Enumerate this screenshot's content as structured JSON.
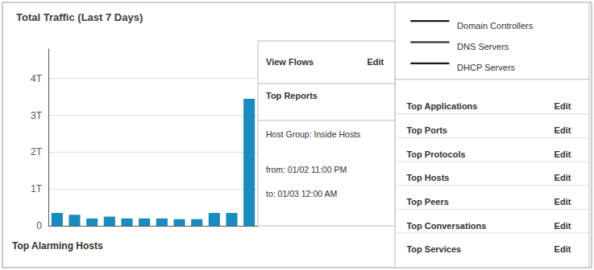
{
  "chart_data": {
    "type": "bar",
    "title": "Total Traffic (Last 7 Days)",
    "categories": [
      null,
      null,
      null,
      null,
      null,
      null,
      null,
      null,
      null,
      null,
      null,
      null
    ],
    "values": [
      0.35,
      0.3,
      0.2,
      0.25,
      0.2,
      0.2,
      0.2,
      0.18,
      0.18,
      0.35,
      0.35,
      3.45
    ],
    "color": "#1a8bbf",
    "ylim": [
      0,
      4.8
    ],
    "yticks": [
      0,
      {
        "value": 1,
        "label": "1T"
      },
      {
        "value": 2,
        "label": "2T"
      },
      {
        "value": 3,
        "label": "3T"
      },
      {
        "value": 4,
        "label": "4T"
      }
    ],
    "grid": true,
    "tick_labels": "y",
    "annotations": [
      "Top Alarming Hosts",
      "View Flows",
      "Edit",
      "Top Reports",
      "Host Group: Inside Hosts",
      "from: 01/02 11:00 PM",
      "to: 01/03 12:00 AM",
      "Domain Controllers",
      "DNS Servers",
      "DHCP Servers",
      "Top Applications",
      "Edit",
      "Top Ports",
      "Edit",
      "Top Protocols",
      "Edit",
      "Top Hosts",
      "Edit",
      "Top Peers",
      "Edit",
      "Top Conversations",
      "Edit",
      "Top Services",
      "Edit"
    ]
  }
}
